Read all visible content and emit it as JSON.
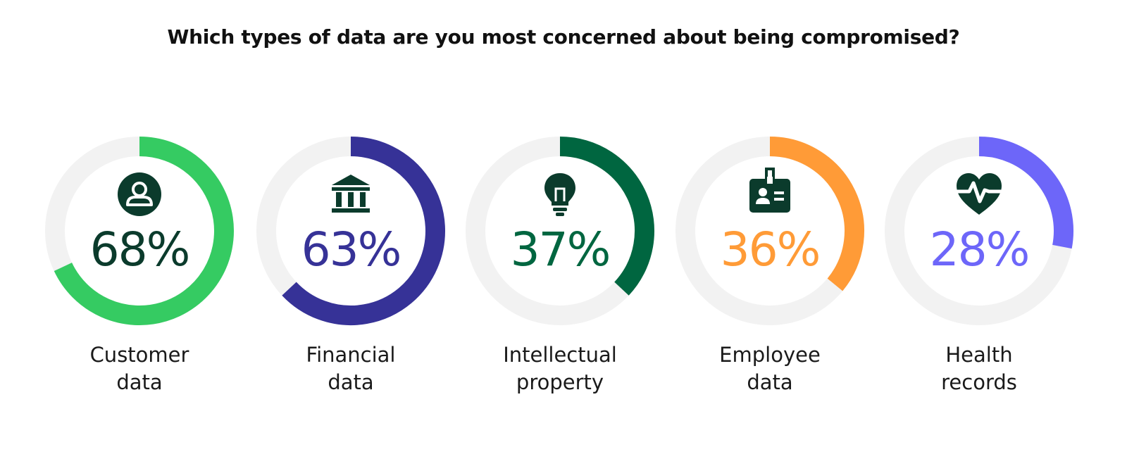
{
  "title": "Which types of data are you most concerned about being compromised?",
  "chart_data": {
    "type": "pie",
    "title": "Which types of data are you most concerned about being compromised?",
    "value_unit": "%",
    "series": [
      {
        "label_lines": [
          "Customer",
          "data"
        ],
        "value": 68,
        "display": "68%",
        "color": "#35CB62",
        "text_color": "#0B3B2C",
        "icon": "user-icon"
      },
      {
        "label_lines": [
          "Financial",
          "data"
        ],
        "value": 63,
        "display": "63%",
        "color": "#363297",
        "text_color": "#363297",
        "icon": "bank-icon"
      },
      {
        "label_lines": [
          "Intellectual",
          "property"
        ],
        "value": 37,
        "display": "37%",
        "color": "#006640",
        "text_color": "#006640",
        "icon": "lightbulb-icon"
      },
      {
        "label_lines": [
          "Employee",
          "data"
        ],
        "value": 36,
        "display": "36%",
        "color": "#FF9B37",
        "text_color": "#FF9B37",
        "icon": "id-badge-icon"
      },
      {
        "label_lines": [
          "Health",
          "records"
        ],
        "value": 28,
        "display": "28%",
        "color": "#6D66F9",
        "text_color": "#6D66F9",
        "icon": "heart-pulse-icon"
      }
    ],
    "track_color": "#F2F2F2",
    "icon_color": "#0B3B2C"
  }
}
